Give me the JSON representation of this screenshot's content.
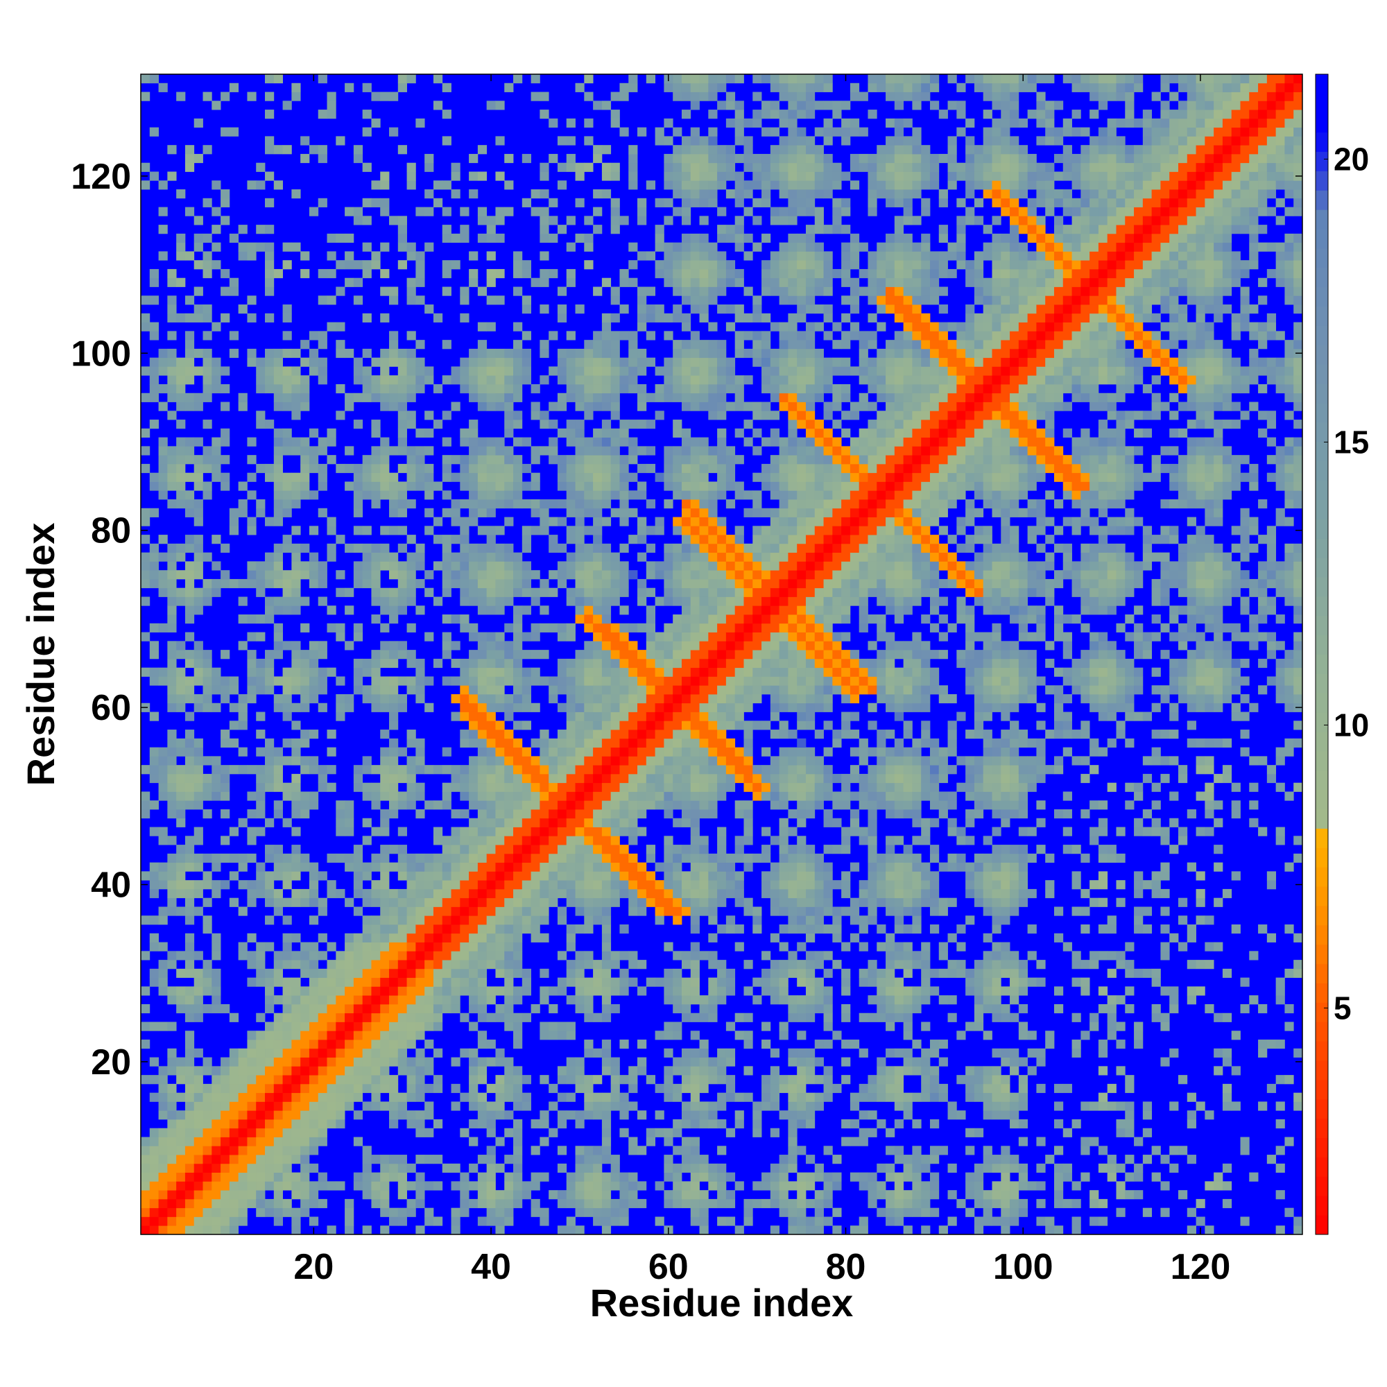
{
  "chart_data": {
    "type": "heatmap",
    "title": "",
    "xlabel": "Residue index",
    "ylabel": "Residue index",
    "xlim": [
      1,
      131
    ],
    "ylim": [
      1,
      131
    ],
    "n_residues": 131,
    "xticks": [
      20,
      40,
      60,
      80,
      100,
      120
    ],
    "yticks": [
      20,
      40,
      60,
      80,
      100,
      120
    ],
    "colorbar": {
      "ticks": [
        5,
        10,
        15,
        20
      ],
      "range": [
        1,
        21.5
      ],
      "stops": [
        {
          "value": 1.0,
          "color": "#ff0000"
        },
        {
          "value": 3.0,
          "color": "#ff2a00"
        },
        {
          "value": 5.0,
          "color": "#ff5a00"
        },
        {
          "value": 6.5,
          "color": "#ff8c00"
        },
        {
          "value": 8.0,
          "color": "#ffb000"
        },
        {
          "value": 8.2,
          "color": "#a3b98a"
        },
        {
          "value": 11.0,
          "color": "#93b196"
        },
        {
          "value": 14.0,
          "color": "#7a9fa6"
        },
        {
          "value": 17.0,
          "color": "#6f8fb2"
        },
        {
          "value": 19.0,
          "color": "#5f84b8"
        },
        {
          "value": 20.5,
          "color": "#0000ff"
        },
        {
          "value": 21.5,
          "color": "#0000ff"
        }
      ]
    },
    "grid": false,
    "legend": "colorbar-right",
    "colors": {
      "far": "#0000ff",
      "near": "#ff0000",
      "mid": "#9fb88e",
      "contact": "#ff8c00"
    },
    "structure": {
      "diagonal_value": 1,
      "background_value": 21,
      "antiparallel_contacts": [
        {
          "i": 98,
          "j": 117,
          "len": 10
        },
        {
          "i": 85,
          "j": 107,
          "len": 12
        },
        {
          "i": 73,
          "j": 95,
          "len": 10
        },
        {
          "i": 62,
          "j": 83,
          "len": 12
        },
        {
          "i": 53,
          "j": 69,
          "len": 9
        },
        {
          "i": 37,
          "j": 60,
          "len": 12
        },
        {
          "i": 52,
          "j": 46,
          "len": 10
        },
        {
          "i": 61,
          "j": 60,
          "len": 10
        },
        {
          "i": 72,
          "j": 71,
          "len": 10
        },
        {
          "i": 85,
          "j": 83,
          "len": 10
        },
        {
          "i": 97,
          "j": 94,
          "len": 10
        },
        {
          "i": 109,
          "j": 106,
          "len": 10
        }
      ],
      "helix_segment": [
        1,
        33
      ],
      "tail_start": 115
    }
  }
}
